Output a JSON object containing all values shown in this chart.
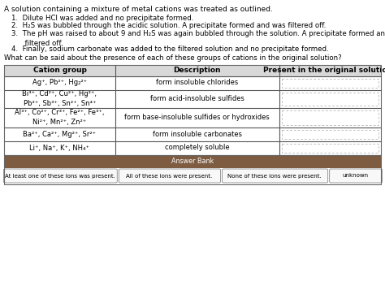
{
  "title_text": "A solution containing a mixture of metal cations was treated as outlined.",
  "steps": [
    "1.  Dilute HCl was added and no precipitate formed.",
    "2.  H₂S was bubbled through the acidic solution. A precipitate formed and was filtered off.",
    "3.  The pH was raised to about 9 and H₂S was again bubbled through the solution. A precipitate formed and was\n      filtered off.",
    "4.  Finally, sodium carbonate was added to the filtered solution and no precipitate formed."
  ],
  "question": "What can be said about the presence of each of these groups of cations in the original solution?",
  "table_headers": [
    "Cation group",
    "Description",
    "Present in the original solution?"
  ],
  "cation_rows": [
    "Ag⁺, Pb²⁺, Hg₂²⁺",
    "Bi³⁺, Cd²⁺, Cu²⁺, Hg²⁺,\nPb²⁺, Sb³⁺, Sn²⁺, Sn⁴⁺",
    "Al³⁺, Co²⁺, Cr³⁺, Fe²⁺, Fe³⁺,\nNi²⁺, Mn²⁺, Zn²⁺",
    "Ba²⁺, Ca²⁺, Mg²⁺, Sr²⁺",
    "Li⁺, Na⁺, K⁺, NH₄⁺"
  ],
  "description_rows": [
    "form insoluble chlorides",
    "form acid-insoluble sulfides",
    "form base-insoluble sulfides or hydroxides",
    "form insoluble carbonates",
    "completely soluble"
  ],
  "answer_bank_text": "Answer Bank",
  "answer_options": [
    "At least one of these ions was present.",
    "All of these ions were present.",
    "None of these ions were present.",
    "unknown"
  ],
  "answer_bank_color": "#7d5c42",
  "bg_color": "#ffffff",
  "table_line_color": "#666666",
  "header_bg": "#d8d8d8"
}
